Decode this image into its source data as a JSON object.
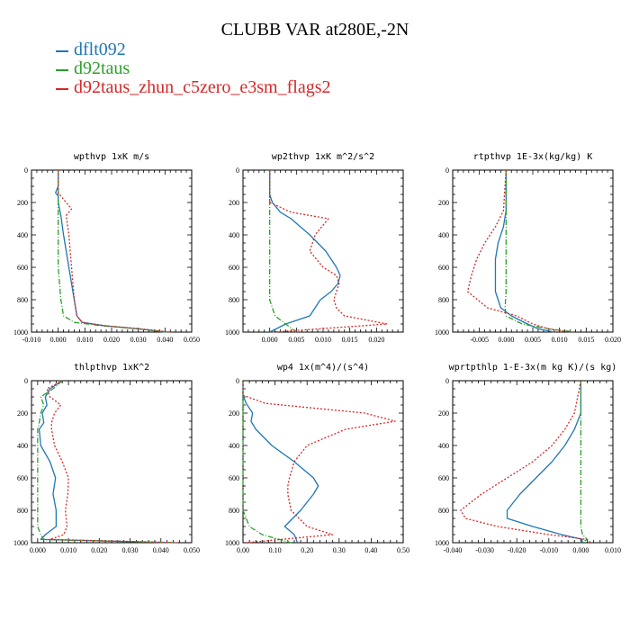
{
  "figure_title": "CLUBB VAR at280E,-2N",
  "legend": [
    {
      "label": "dflt092",
      "color": "#1f77b4"
    },
    {
      "label": "d92taus",
      "color": "#2ca02c"
    },
    {
      "label": "d92taus_zhun_c5zero_e3sm_flags2",
      "color": "#d62728"
    }
  ],
  "chart_data": [
    {
      "type": "line",
      "title": "wpthvp   1xK m/s",
      "xlim": [
        -0.01,
        0.05
      ],
      "xticks": [
        -0.01,
        0,
        0.01,
        0.02,
        0.03,
        0.04,
        0.05
      ],
      "xtick_labels": [
        "-0.010",
        "0.000",
        "0.010",
        "0.020",
        "0.030",
        "0.040",
        "0.050"
      ],
      "ylim": [
        0,
        1000
      ],
      "yticks": [
        0,
        200,
        400,
        600,
        800,
        1000
      ],
      "ytick_labels": [
        "0",
        "200",
        "400",
        "600",
        "800",
        "1000"
      ],
      "y": [
        0,
        100,
        140,
        160,
        200,
        240,
        280,
        400,
        600,
        800,
        900,
        940,
        960,
        980,
        1000
      ],
      "series": [
        {
          "name": "dflt092",
          "values": [
            0,
            0,
            -0.001,
            0,
            0,
            0.0005,
            0.001,
            0.002,
            0.004,
            0.006,
            0.007,
            0.009,
            0.017,
            0.03,
            0.04
          ]
        },
        {
          "name": "d92taus",
          "values": [
            0,
            0,
            0,
            0,
            0,
            0,
            0,
            0,
            0,
            0.001,
            0.002,
            0.006,
            0.016,
            0.03,
            0.041
          ]
        },
        {
          "name": "d92taus_zhun_c5zero_e3sm_flags2",
          "values": [
            0,
            0,
            0,
            0.001,
            0.003,
            0.005,
            0.003,
            0.004,
            0.005,
            0.006,
            0.007,
            0.009,
            0.017,
            0.031,
            0.042
          ]
        }
      ]
    },
    {
      "type": "line",
      "title": "wp2thvp   1xK m^2/s^2",
      "xlim": [
        -0.005,
        0.025
      ],
      "xticks": [
        0,
        0.005,
        0.01,
        0.015,
        0.02
      ],
      "xtick_labels": [
        "0.000",
        "0.005",
        "0.010",
        "0.015",
        "0.020"
      ],
      "ylim": [
        0,
        1000
      ],
      "yticks": [
        0,
        200,
        400,
        600,
        800,
        1000
      ],
      "ytick_labels": [
        "0",
        "200",
        "400",
        "600",
        "800",
        "1000"
      ],
      "y": [
        0,
        100,
        150,
        200,
        260,
        300,
        400,
        500,
        600,
        650,
        700,
        750,
        800,
        850,
        900,
        950,
        1000
      ],
      "series": [
        {
          "name": "dflt092",
          "values": [
            0,
            0,
            0,
            0.0005,
            0.002,
            0.004,
            0.0075,
            0.0105,
            0.0125,
            0.0132,
            0.0128,
            0.0115,
            0.0095,
            0.0085,
            0.0075,
            0.003,
            0
          ]
        },
        {
          "name": "d92taus",
          "values": [
            0,
            0,
            0,
            0,
            0,
            0,
            0,
            0,
            0,
            0,
            0,
            0,
            0,
            0.0005,
            0.001,
            0.003,
            0.005
          ]
        },
        {
          "name": "d92taus_zhun_c5zero_e3sm_flags2",
          "values": [
            0,
            0,
            0,
            0,
            0.004,
            0.011,
            0.0085,
            0.0075,
            0.01,
            0.0125,
            0.013,
            0.0125,
            0.012,
            0.0125,
            0.014,
            0.022,
            0.0005
          ]
        }
      ]
    },
    {
      "type": "line",
      "title": "rtpthvp   1E-3x(kg/kg) K",
      "xlim": [
        -0.01,
        0.02
      ],
      "xticks": [
        -0.005,
        0,
        0.005,
        0.01,
        0.015,
        0.02
      ],
      "xtick_labels": [
        "-0.005",
        "0.000",
        "0.005",
        "0.010",
        "0.015",
        "0.020"
      ],
      "ylim": [
        0,
        1000
      ],
      "yticks": [
        0,
        200,
        400,
        600,
        800,
        1000
      ],
      "ytick_labels": [
        "0",
        "200",
        "400",
        "600",
        "800",
        "1000"
      ],
      "y": [
        0,
        250,
        350,
        450,
        550,
        650,
        750,
        850,
        900,
        950,
        980,
        1000
      ],
      "series": [
        {
          "name": "dflt092",
          "values": [
            0,
            0,
            -0.0005,
            -0.0015,
            -0.002,
            -0.002,
            -0.002,
            -0.001,
            0.001,
            0.004,
            0.006,
            0.009
          ]
        },
        {
          "name": "d92taus",
          "values": [
            0,
            0,
            0,
            0,
            0,
            0,
            0,
            -0.0002,
            0,
            0.003,
            0.008,
            0.013
          ]
        },
        {
          "name": "d92taus_zhun_c5zero_e3sm_flags2",
          "values": [
            0,
            -0.0005,
            -0.002,
            -0.004,
            -0.0055,
            -0.0065,
            -0.0072,
            -0.0035,
            0.002,
            0.005,
            0.008,
            0.012
          ]
        }
      ]
    },
    {
      "type": "line",
      "title": "thlpthvp   1xK^2",
      "xlim": [
        -0.002,
        0.05
      ],
      "xticks": [
        0,
        0.01,
        0.02,
        0.03,
        0.04,
        0.05
      ],
      "xtick_labels": [
        "0.000",
        "0.010",
        "0.020",
        "0.030",
        "0.040",
        "0.050"
      ],
      "ylim": [
        0,
        1000
      ],
      "yticks": [
        0,
        200,
        400,
        600,
        800,
        1000
      ],
      "ytick_labels": [
        "0",
        "200",
        "400",
        "600",
        "800",
        "1000"
      ],
      "y": [
        0,
        50,
        100,
        150,
        200,
        260,
        300,
        400,
        500,
        600,
        700,
        800,
        900,
        950,
        980,
        1000
      ],
      "series": [
        {
          "name": "dflt092",
          "values": [
            0.008,
            0.004,
            0.0025,
            0.003,
            0.0015,
            0.002,
            0.0005,
            0.001,
            0.004,
            0.0058,
            0.005,
            0.006,
            0.006,
            0.0025,
            0.001,
            0.045
          ]
        },
        {
          "name": "d92taus",
          "values": [
            0.008,
            0.005,
            0.001,
            0.002,
            0.001,
            0.0005,
            0,
            0,
            0,
            0,
            0,
            0,
            0,
            0.001,
            0.002,
            0.045
          ]
        },
        {
          "name": "d92taus_zhun_c5zero_e3sm_flags2",
          "values": [
            0.008,
            0.003,
            0.004,
            0.0075,
            0.0055,
            0.0045,
            0.0045,
            0.0055,
            0.008,
            0.01,
            0.0098,
            0.009,
            0.0095,
            0.0085,
            0.004,
            0.046
          ]
        }
      ]
    },
    {
      "type": "line",
      "title": "wp4   1x(m^4)/(s^4)",
      "xlim": [
        0,
        0.5
      ],
      "xticks": [
        0,
        0.1,
        0.2,
        0.3,
        0.4,
        0.5
      ],
      "xtick_labels": [
        "0.00",
        "0.10",
        "0.20",
        "0.30",
        "0.40",
        "0.50"
      ],
      "ylim": [
        0,
        1000
      ],
      "yticks": [
        0,
        200,
        400,
        600,
        800,
        1000
      ],
      "ytick_labels": [
        "0",
        "200",
        "400",
        "600",
        "800",
        "1000"
      ],
      "y": [
        0,
        90,
        140,
        200,
        250,
        300,
        400,
        500,
        600,
        650,
        700,
        800,
        900,
        950,
        1000
      ],
      "series": [
        {
          "name": "dflt092",
          "values": [
            0,
            0,
            0.01,
            0.03,
            0.025,
            0.04,
            0.09,
            0.16,
            0.22,
            0.235,
            0.22,
            0.18,
            0.13,
            0.16,
            0.17
          ]
        },
        {
          "name": "d92taus",
          "values": [
            0,
            0,
            0,
            0,
            0,
            0,
            0,
            0,
            0,
            0,
            0,
            0,
            0.02,
            0.06,
            0.15
          ]
        },
        {
          "name": "d92taus_zhun_c5zero_e3sm_flags2",
          "values": [
            0,
            0,
            0.07,
            0.38,
            0.475,
            0.32,
            0.2,
            0.16,
            0.145,
            0.14,
            0.14,
            0.15,
            0.2,
            0.28,
            0.01
          ]
        }
      ]
    },
    {
      "type": "line",
      "title": "wprtpthlp   1-E-3x(m kg K)/(s kg)",
      "xlim": [
        -0.04,
        0.01
      ],
      "xticks": [
        -0.04,
        -0.03,
        -0.02,
        -0.01,
        0,
        0.01
      ],
      "xtick_labels": [
        "-0.040",
        "-0.030",
        "-0.020",
        "-0.010",
        "0.000",
        "0.010"
      ],
      "ylim": [
        0,
        1000
      ],
      "yticks": [
        0,
        200,
        400,
        600,
        800,
        1000
      ],
      "ytick_labels": [
        "0",
        "200",
        "400",
        "600",
        "800",
        "1000"
      ],
      "y": [
        0,
        200,
        300,
        400,
        500,
        600,
        700,
        800,
        850,
        900,
        950,
        980,
        1000
      ],
      "series": [
        {
          "name": "dflt092",
          "values": [
            0,
            0,
            -0.002,
            -0.005,
            -0.009,
            -0.014,
            -0.019,
            -0.023,
            -0.023,
            -0.015,
            -0.006,
            0.0005,
            0
          ]
        },
        {
          "name": "d92taus",
          "values": [
            0,
            0,
            0,
            0,
            0,
            0,
            0,
            0,
            0,
            0,
            0.0005,
            0.002,
            0
          ]
        },
        {
          "name": "d92taus_zhun_c5zero_e3sm_flags2",
          "values": [
            0,
            -0.002,
            -0.005,
            -0.009,
            -0.015,
            -0.023,
            -0.031,
            -0.0375,
            -0.036,
            -0.026,
            -0.01,
            0.002,
            0.003
          ]
        }
      ]
    }
  ]
}
